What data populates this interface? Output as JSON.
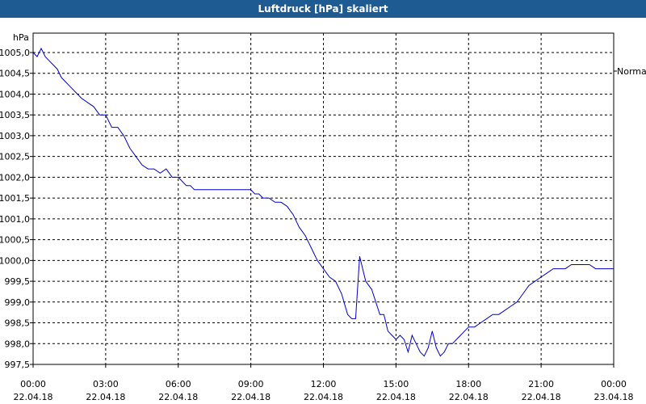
{
  "header": {
    "title": "Luftdruck [hPa] skaliert"
  },
  "chart_data": {
    "type": "line",
    "title": "Luftdruck [hPa] skaliert",
    "ylabel": "hPa",
    "xlabel": "",
    "ylim": [
      997.5,
      1005.0
    ],
    "yticks": [
      "1005,0",
      "1004,5",
      "1004,0",
      "1003,5",
      "1003,0",
      "1002,5",
      "1002,0",
      "1001,5",
      "1001,0",
      "1000,5",
      "1000,0",
      "999,5",
      "999,0",
      "998,5",
      "998,0",
      "997,5"
    ],
    "xticks": [
      {
        "time": "00:00",
        "date": "22.04.18"
      },
      {
        "time": "03:00",
        "date": "22.04.18"
      },
      {
        "time": "06:00",
        "date": "22.04.18"
      },
      {
        "time": "09:00",
        "date": "22.04.18"
      },
      {
        "time": "12:00",
        "date": "22.04.18"
      },
      {
        "time": "15:00",
        "date": "22.04.18"
      },
      {
        "time": "18:00",
        "date": "22.04.18"
      },
      {
        "time": "21:00",
        "date": "22.04.18"
      },
      {
        "time": "00:00",
        "date": "23.04.18"
      }
    ],
    "grid": true,
    "legend": {
      "label": "Normal",
      "placement": "right"
    },
    "series": [
      {
        "color": "#0000cc",
        "x": [
          "00:00",
          "00:10",
          "00:20",
          "00:30",
          "00:40",
          "00:50",
          "01:00",
          "01:10",
          "01:20",
          "01:30",
          "01:40",
          "01:50",
          "02:00",
          "02:15",
          "02:30",
          "02:45",
          "03:00",
          "03:15",
          "03:30",
          "03:45",
          "04:00",
          "04:15",
          "04:30",
          "04:45",
          "05:00",
          "05:15",
          "05:30",
          "05:45",
          "06:00",
          "06:10",
          "06:20",
          "06:30",
          "06:40",
          "06:50",
          "07:00",
          "07:15",
          "07:30",
          "08:00",
          "09:00",
          "09:10",
          "09:20",
          "09:30",
          "09:45",
          "10:00",
          "10:15",
          "10:30",
          "10:45",
          "11:00",
          "11:15",
          "11:30",
          "11:45",
          "12:00",
          "12:15",
          "12:30",
          "12:45",
          "13:00",
          "13:10",
          "13:20",
          "13:30",
          "13:45",
          "14:00",
          "14:10",
          "14:20",
          "14:30",
          "14:40",
          "14:50",
          "15:00",
          "15:10",
          "15:20",
          "15:30",
          "15:40",
          "15:50",
          "16:00",
          "16:10",
          "16:20",
          "16:30",
          "16:40",
          "16:50",
          "17:00",
          "17:10",
          "17:20",
          "17:30",
          "17:40",
          "17:50",
          "18:00",
          "18:15",
          "18:30",
          "18:45",
          "19:00",
          "19:15",
          "19:30",
          "19:45",
          "20:00",
          "20:15",
          "20:30",
          "20:45",
          "21:00",
          "21:15",
          "21:30",
          "22:00",
          "22:15",
          "22:30",
          "23:00",
          "23:15",
          "23:30",
          "23:59"
        ],
        "y": [
          1005.0,
          1004.9,
          1005.1,
          1004.9,
          1004.8,
          1004.7,
          1004.6,
          1004.4,
          1004.3,
          1004.2,
          1004.1,
          1004.0,
          1003.9,
          1003.8,
          1003.7,
          1003.5,
          1003.5,
          1003.2,
          1003.2,
          1003.0,
          1002.7,
          1002.5,
          1002.3,
          1002.2,
          1002.2,
          1002.1,
          1002.2,
          1002.0,
          1002.0,
          1001.9,
          1001.8,
          1001.8,
          1001.7,
          1001.7,
          1001.7,
          1001.7,
          1001.7,
          1001.7,
          1001.7,
          1001.6,
          1001.6,
          1001.5,
          1001.5,
          1001.4,
          1001.4,
          1001.3,
          1001.1,
          1000.8,
          1000.6,
          1000.3,
          1000.0,
          999.8,
          999.6,
          999.5,
          999.2,
          998.7,
          998.6,
          998.6,
          1000.1,
          999.5,
          999.3,
          999.0,
          998.7,
          998.7,
          998.3,
          998.2,
          998.1,
          998.2,
          998.1,
          997.8,
          998.2,
          998.0,
          997.8,
          997.7,
          997.9,
          998.3,
          997.9,
          997.7,
          997.8,
          998.0,
          998.0,
          998.1,
          998.2,
          998.3,
          998.4,
          998.4,
          998.5,
          998.6,
          998.7,
          998.7,
          998.8,
          998.9,
          999.0,
          999.2,
          999.4,
          999.5,
          999.6,
          999.7,
          999.8,
          999.8,
          999.9,
          999.9,
          999.9,
          999.8,
          999.8,
          999.8
        ]
      }
    ]
  }
}
